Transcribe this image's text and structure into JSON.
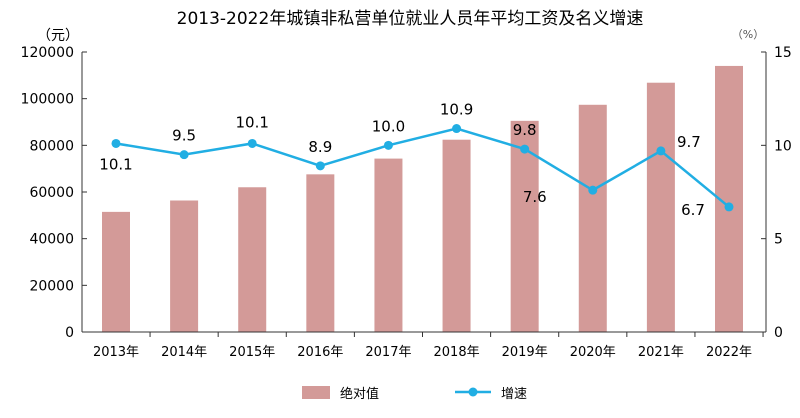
{
  "chart_data": {
    "type": "bar+line",
    "title": "2013-2022年城镇非私营单位就业人员年平均工资及名义增速",
    "ylabel_left": "（元）",
    "ylabel_right": "（%）",
    "categories": [
      "2013年",
      "2014年",
      "2015年",
      "2016年",
      "2017年",
      "2018年",
      "2019年",
      "2020年",
      "2021年",
      "2022年"
    ],
    "ylim_left": [
      0,
      120000
    ],
    "yticks_left": [
      0,
      20000,
      40000,
      60000,
      80000,
      100000,
      120000
    ],
    "ylim_right": [
      0,
      15
    ],
    "yticks_right": [
      0,
      5,
      10,
      15
    ],
    "grid": false,
    "legend_position": "bottom",
    "series": [
      {
        "name": "绝对值",
        "type": "bar",
        "axis": "left",
        "color": "#d39a98",
        "values": [
          51483,
          56360,
          62029,
          67569,
          74318,
          82413,
          90501,
          97379,
          106837,
          114029
        ]
      },
      {
        "name": "增速",
        "type": "line",
        "axis": "right",
        "color": "#21aee3",
        "values": [
          10.1,
          9.5,
          10.1,
          8.9,
          10.0,
          10.9,
          9.8,
          7.6,
          9.7,
          6.7
        ],
        "labels": [
          "10.1",
          "9.5",
          "10.1",
          "8.9",
          "10.0",
          "10.9",
          "9.8",
          "7.6",
          "9.7",
          "6.7"
        ]
      }
    ]
  }
}
